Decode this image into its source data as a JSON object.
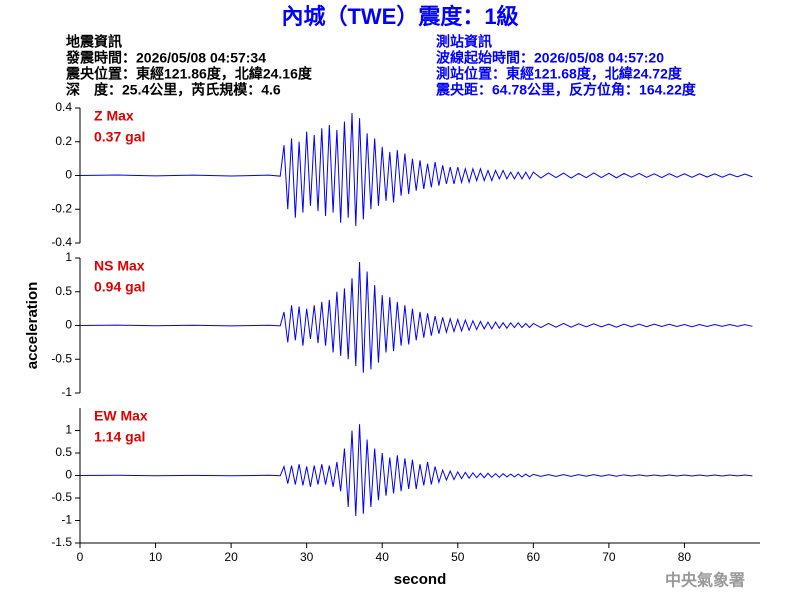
{
  "header": {
    "title": "內城（TWE）震度：1級",
    "quake": [
      "地震資訊",
      "發震時間：2026/05/08 04:57:34",
      "震央位置：東經121.86度，北緯24.16度",
      "深　度：25.4公里，芮氏規模：4.6"
    ],
    "station": [
      "測站資訊",
      "波線起始時間：2026/05/08 04:57:20",
      "測站位置：東經121.68度，北緯24.72度",
      "震央距：64.78公里，反方位角：164.22度"
    ],
    "footer": "中央氣象署"
  },
  "chart_data": [
    {
      "type": "line",
      "annotations": [
        "Z Max",
        "0.37 gal"
      ],
      "color": "#0000ff",
      "xlim": [
        0,
        90
      ],
      "ylim": [
        -0.4,
        0.4
      ],
      "yticks": [
        -0.4,
        -0.2,
        0,
        0.2,
        0.4
      ],
      "x": [
        0,
        5,
        10,
        15,
        20,
        25,
        26.5,
        27,
        27.5,
        28,
        28.5,
        29,
        29.5,
        30,
        30.5,
        31,
        31.5,
        32,
        32.5,
        33,
        33.5,
        34,
        34.5,
        35,
        35.5,
        36,
        36.5,
        37,
        37.5,
        38,
        38.5,
        39,
        39.5,
        40,
        40.5,
        41,
        41.5,
        42,
        42.5,
        43,
        43.5,
        44,
        44.5,
        45,
        45.5,
        46,
        46.5,
        47,
        47.5,
        48,
        48.5,
        49,
        49.5,
        50,
        50.5,
        51,
        51.5,
        52,
        52.5,
        53,
        53.5,
        54,
        54.5,
        55,
        55.5,
        56,
        56.5,
        57,
        57.5,
        58,
        58.5,
        59,
        59.5,
        60,
        61,
        62,
        63,
        64,
        65,
        66,
        67,
        68,
        69,
        70,
        71,
        72,
        73,
        74,
        75,
        76,
        77,
        78,
        79,
        80,
        81,
        82,
        83,
        84,
        85,
        86,
        87,
        88,
        89
      ],
      "values": [
        0,
        0.003,
        -0.002,
        0.002,
        -0.003,
        0.002,
        -0.004,
        0.18,
        -0.2,
        0.22,
        -0.25,
        0.2,
        -0.22,
        0.26,
        -0.18,
        0.24,
        -0.21,
        0.28,
        -0.24,
        0.3,
        -0.22,
        0.27,
        -0.28,
        0.32,
        -0.25,
        0.37,
        -0.3,
        0.34,
        -0.26,
        0.25,
        -0.2,
        0.22,
        -0.18,
        0.17,
        -0.15,
        0.14,
        -0.16,
        0.15,
        -0.12,
        0.13,
        -0.11,
        0.1,
        -0.09,
        0.09,
        -0.08,
        0.07,
        -0.07,
        0.08,
        -0.06,
        0.06,
        -0.05,
        0.05,
        -0.05,
        0.05,
        -0.04,
        0.04,
        -0.04,
        0.04,
        -0.03,
        0.04,
        -0.03,
        0.03,
        -0.03,
        0.03,
        -0.02,
        0.03,
        -0.02,
        0.02,
        -0.02,
        0.02,
        -0.02,
        0.02,
        -0.02,
        0.02,
        -0.015,
        0.015,
        -0.012,
        0.014,
        -0.015,
        0.012,
        -0.013,
        0.015,
        -0.012,
        0.013,
        -0.014,
        0.012,
        -0.01,
        0.012,
        -0.011,
        0.01,
        -0.012,
        0.011,
        -0.01,
        0.01,
        -0.011,
        0.01,
        -0.009,
        0.01,
        -0.01,
        0.009,
        -0.008,
        0.009,
        -0.008
      ]
    },
    {
      "type": "line",
      "annotations": [
        "NS Max",
        "0.94 gal"
      ],
      "color": "#0000ff",
      "xlim": [
        0,
        90
      ],
      "ylim": [
        -1,
        1
      ],
      "yticks": [
        -1,
        -0.5,
        0,
        0.5,
        1
      ],
      "ylabel": "acceleration",
      "x": [
        0,
        5,
        10,
        15,
        20,
        25,
        26.5,
        27,
        27.5,
        28,
        28.5,
        29,
        29.5,
        30,
        30.5,
        31,
        31.5,
        32,
        32.5,
        33,
        33.5,
        34,
        34.5,
        35,
        35.5,
        36,
        36.5,
        37,
        37.5,
        38,
        38.5,
        39,
        39.5,
        40,
        40.5,
        41,
        41.5,
        42,
        42.5,
        43,
        43.5,
        44,
        44.5,
        45,
        45.5,
        46,
        46.5,
        47,
        47.5,
        48,
        48.5,
        49,
        49.5,
        50,
        50.5,
        51,
        51.5,
        52,
        52.5,
        53,
        53.5,
        54,
        54.5,
        55,
        55.5,
        56,
        56.5,
        57,
        57.5,
        58,
        58.5,
        59,
        59.5,
        60,
        61,
        62,
        63,
        64,
        65,
        66,
        67,
        68,
        69,
        70,
        71,
        72,
        73,
        74,
        75,
        76,
        77,
        78,
        79,
        80,
        81,
        82,
        83,
        84,
        85,
        86,
        87,
        88,
        89
      ],
      "values": [
        0,
        0.005,
        -0.004,
        0.004,
        -0.005,
        0.004,
        -0.006,
        0.2,
        -0.25,
        0.3,
        -0.22,
        0.28,
        -0.3,
        0.25,
        -0.2,
        0.3,
        -0.26,
        0.35,
        -0.3,
        0.38,
        -0.4,
        0.5,
        -0.45,
        0.55,
        -0.5,
        0.7,
        -0.6,
        0.94,
        -0.7,
        0.8,
        -0.65,
        0.6,
        -0.55,
        0.45,
        -0.4,
        0.42,
        -0.38,
        0.35,
        -0.3,
        0.3,
        -0.28,
        0.25,
        -0.22,
        0.2,
        -0.18,
        0.18,
        -0.15,
        0.14,
        -0.12,
        0.12,
        -0.1,
        0.1,
        -0.09,
        0.09,
        -0.08,
        0.08,
        -0.07,
        0.07,
        -0.06,
        0.06,
        -0.05,
        0.05,
        -0.05,
        0.05,
        -0.04,
        0.04,
        -0.04,
        0.04,
        -0.03,
        0.04,
        -0.03,
        0.03,
        -0.03,
        0.03,
        -0.03,
        0.03,
        -0.025,
        0.03,
        -0.025,
        0.025,
        -0.02,
        0.025,
        -0.02,
        0.02,
        -0.025,
        0.02,
        -0.02,
        0.02,
        -0.018,
        0.02,
        -0.015,
        0.018,
        -0.015,
        0.015,
        -0.018,
        0.015,
        -0.015,
        0.015,
        -0.012,
        0.015,
        -0.012,
        0.012,
        -0.012
      ]
    },
    {
      "type": "line",
      "annotations": [
        "EW Max",
        "1.14 gal"
      ],
      "color": "#0000ff",
      "xlim": [
        0,
        90
      ],
      "ylim": [
        -1.5,
        1.5
      ],
      "yticks": [
        -1.5,
        -1,
        -0.5,
        0,
        0.5,
        1
      ],
      "xticks": [
        0,
        10,
        20,
        30,
        40,
        50,
        60,
        70,
        80
      ],
      "xlabel": "second",
      "x": [
        0,
        5,
        10,
        15,
        20,
        25,
        26.5,
        27,
        27.5,
        28,
        28.5,
        29,
        29.5,
        30,
        30.5,
        31,
        31.5,
        32,
        32.5,
        33,
        33.5,
        34,
        34.5,
        35,
        35.5,
        36,
        36.5,
        37,
        37.5,
        38,
        38.5,
        39,
        39.5,
        40,
        40.5,
        41,
        41.5,
        42,
        42.5,
        43,
        43.5,
        44,
        44.5,
        45,
        45.5,
        46,
        46.5,
        47,
        47.5,
        48,
        48.5,
        49,
        49.5,
        50,
        50.5,
        51,
        51.5,
        52,
        52.5,
        53,
        53.5,
        54,
        54.5,
        55,
        55.5,
        56,
        56.5,
        57,
        57.5,
        58,
        58.5,
        59,
        59.5,
        60,
        61,
        62,
        63,
        64,
        65,
        66,
        67,
        68,
        69,
        70,
        71,
        72,
        73,
        74,
        75,
        76,
        77,
        78,
        79,
        80,
        81,
        82,
        83,
        84,
        85,
        86,
        87,
        88,
        89
      ],
      "values": [
        0,
        0.005,
        -0.005,
        0.004,
        -0.005,
        0.005,
        -0.006,
        0.2,
        -0.18,
        0.22,
        -0.2,
        0.25,
        -0.22,
        0.2,
        -0.25,
        0.22,
        -0.2,
        0.25,
        -0.2,
        0.22,
        -0.25,
        0.3,
        -0.35,
        0.6,
        -0.7,
        1.0,
        -0.9,
        1.14,
        -0.85,
        0.8,
        -0.7,
        0.6,
        -0.55,
        0.5,
        -0.45,
        0.4,
        -0.4,
        0.45,
        -0.35,
        0.38,
        -0.3,
        0.35,
        -0.3,
        0.25,
        -0.22,
        0.3,
        -0.2,
        0.2,
        -0.15,
        0.12,
        -0.1,
        0.1,
        -0.09,
        0.08,
        -0.07,
        0.07,
        -0.06,
        0.06,
        -0.05,
        0.05,
        -0.05,
        0.05,
        -0.04,
        0.04,
        -0.04,
        0.04,
        -0.03,
        0.03,
        -0.03,
        0.03,
        -0.03,
        0.03,
        -0.025,
        0.025,
        -0.02,
        0.02,
        -0.02,
        0.02,
        -0.018,
        0.02,
        -0.015,
        0.018,
        -0.015,
        0.015,
        -0.015,
        0.015,
        -0.012,
        0.015,
        -0.012,
        0.012,
        -0.012,
        0.012,
        -0.01,
        0.012,
        -0.01,
        0.01,
        -0.01,
        0.01,
        -0.01,
        0.01,
        -0.008,
        0.01,
        -0.008
      ]
    }
  ]
}
